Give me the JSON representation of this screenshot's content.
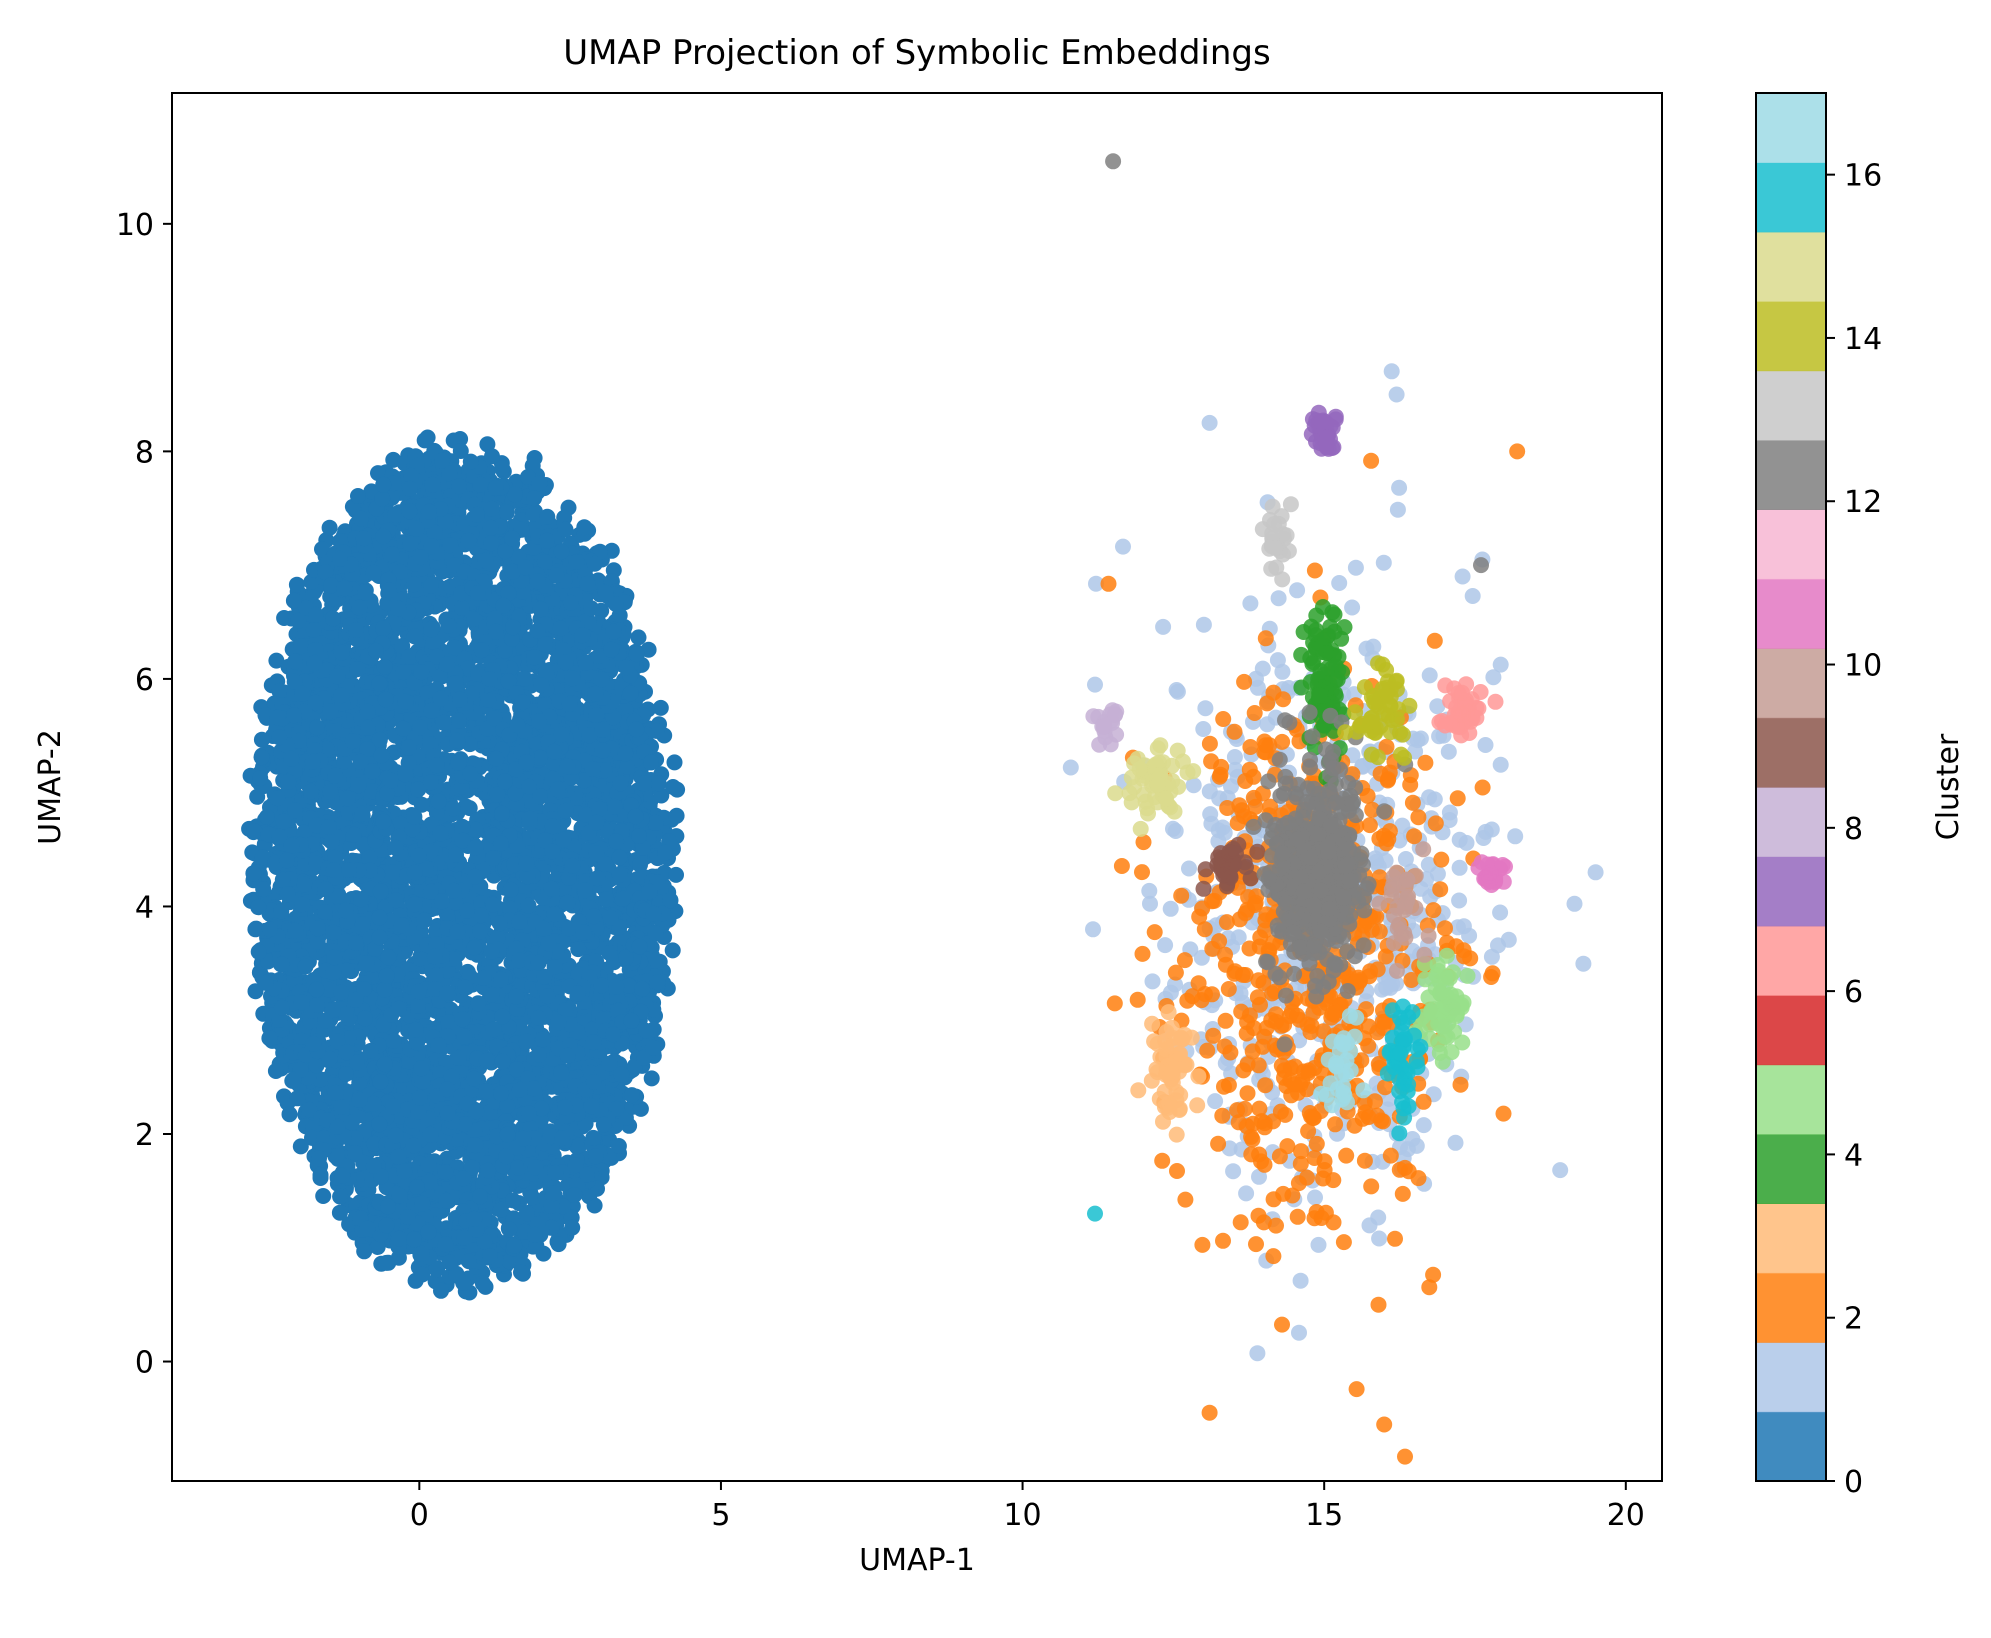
{
  "chart_data": {
    "type": "scatter",
    "title": "UMAP Projection of Symbolic Embeddings",
    "xlabel": "UMAP-1",
    "ylabel": "UMAP-2",
    "xlim": [
      -4.1,
      20.6
    ],
    "ylim": [
      -1.05,
      11.15
    ],
    "xticks": [
      0,
      5,
      10,
      15,
      20
    ],
    "yticks": [
      0,
      2,
      4,
      6,
      8,
      10
    ],
    "grid": false,
    "colorbar": {
      "label": "Cluster",
      "range": [
        0,
        17
      ],
      "ticks": [
        0,
        2,
        4,
        6,
        8,
        10,
        12,
        14,
        16
      ],
      "colormap": "tab20",
      "colors": [
        "#1f77b4",
        "#aec7e8",
        "#ff7f0e",
        "#ffbb78",
        "#2ca02c",
        "#98df8a",
        "#d62728",
        "#ff9896",
        "#9467bd",
        "#c5b0d5",
        "#8c564b",
        "#c49c94",
        "#e377c2",
        "#f7b6d2",
        "#7f7f7f",
        "#c7c7c7",
        "#bcbd22",
        "#dbdb8d",
        "#17becf",
        "#9edae5"
      ]
    },
    "cluster_regions": [
      {
        "cluster": 0,
        "shape": "ellipse",
        "center": [
          0.7,
          4.35
        ],
        "spread": [
          3.5,
          3.7
        ],
        "approx_points": 6000
      },
      {
        "cluster": 1,
        "shape": "cloud",
        "center": [
          15.0,
          4.0
        ],
        "spread": [
          2.8,
          2.6
        ],
        "approx_points": 520
      },
      {
        "cluster": 2,
        "shape": "cloud",
        "center": [
          14.8,
          3.6
        ],
        "spread": [
          2.2,
          2.4
        ],
        "approx_points": 620
      },
      {
        "cluster": 3,
        "shape": "cloud",
        "center": [
          12.5,
          2.6
        ],
        "spread": [
          0.35,
          0.45
        ],
        "approx_points": 60
      },
      {
        "cluster": 4,
        "shape": "cloud",
        "center": [
          15.0,
          6.0
        ],
        "spread": [
          0.35,
          0.7
        ],
        "approx_points": 90
      },
      {
        "cluster": 5,
        "shape": "cloud",
        "center": [
          17.0,
          3.1
        ],
        "spread": [
          0.45,
          0.45
        ],
        "approx_points": 60
      },
      {
        "cluster": 7,
        "shape": "cloud",
        "center": [
          17.3,
          5.7
        ],
        "spread": [
          0.35,
          0.25
        ],
        "approx_points": 45
      },
      {
        "cluster": 8,
        "shape": "cloud",
        "center": [
          15.0,
          8.2
        ],
        "spread": [
          0.2,
          0.2
        ],
        "approx_points": 40
      },
      {
        "cluster": 9,
        "shape": "cloud",
        "center": [
          11.4,
          5.6
        ],
        "spread": [
          0.2,
          0.25
        ],
        "approx_points": 18
      },
      {
        "cluster": 10,
        "shape": "cloud",
        "center": [
          13.4,
          4.35
        ],
        "spread": [
          0.3,
          0.15
        ],
        "approx_points": 35
      },
      {
        "cluster": 11,
        "shape": "cloud",
        "center": [
          16.3,
          4.0
        ],
        "spread": [
          0.35,
          0.45
        ],
        "approx_points": 30
      },
      {
        "cluster": 12,
        "shape": "cloud",
        "center": [
          17.8,
          4.3
        ],
        "spread": [
          0.25,
          0.15
        ],
        "approx_points": 22
      },
      {
        "cluster": 14,
        "shape": "cloud",
        "center": [
          14.8,
          4.3
        ],
        "spread": [
          0.8,
          0.9
        ],
        "approx_points": 420
      },
      {
        "cluster": 15,
        "shape": "cloud",
        "center": [
          14.2,
          7.2
        ],
        "spread": [
          0.2,
          0.4
        ],
        "approx_points": 25
      },
      {
        "cluster": 16,
        "shape": "cloud",
        "center": [
          15.9,
          5.7
        ],
        "spread": [
          0.4,
          0.35
        ],
        "approx_points": 50
      },
      {
        "cluster": 17,
        "shape": "cloud",
        "center": [
          12.2,
          5.1
        ],
        "spread": [
          0.45,
          0.3
        ],
        "approx_points": 55
      },
      {
        "cluster": 18,
        "shape": "cloud",
        "center": [
          16.3,
          2.7
        ],
        "spread": [
          0.3,
          0.55
        ],
        "approx_points": 45
      },
      {
        "cluster": 19,
        "shape": "cloud",
        "center": [
          15.3,
          2.5
        ],
        "spread": [
          0.3,
          0.5
        ],
        "approx_points": 30
      }
    ],
    "notable_points": [
      {
        "x": 11.5,
        "y": 10.55,
        "cluster": 14
      },
      {
        "x": 13.1,
        "y": -0.45,
        "cluster": 2
      },
      {
        "x": 19.5,
        "y": 4.3,
        "cluster": 1
      },
      {
        "x": 11.2,
        "y": 1.3,
        "cluster": 18
      },
      {
        "x": 18.2,
        "y": 8.0,
        "cluster": 2
      },
      {
        "x": 16.2,
        "y": 8.5,
        "cluster": 1
      },
      {
        "x": 13.1,
        "y": 8.25,
        "cluster": 1
      },
      {
        "x": 11.2,
        "y": 5.95,
        "cluster": 1
      },
      {
        "x": 15.9,
        "y": 0.5,
        "cluster": 2
      },
      {
        "x": 17.6,
        "y": 7.0,
        "cluster": 14
      }
    ]
  }
}
